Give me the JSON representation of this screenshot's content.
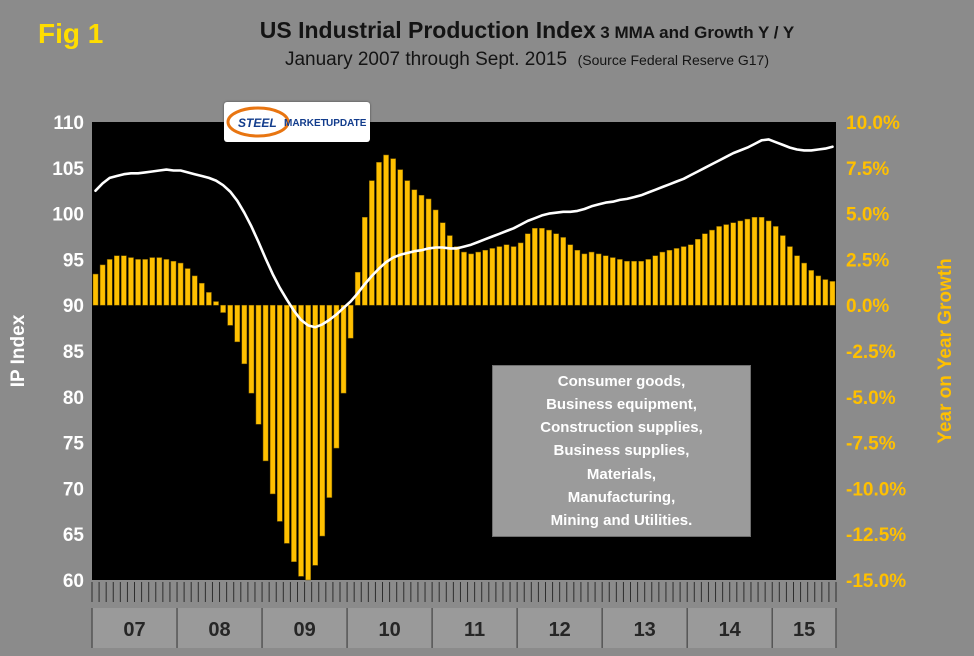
{
  "fig_label": "Fig 1",
  "title": {
    "main": "US Industrial Production Index",
    "suffix": "3 MMA and Growth Y / Y",
    "line2": "January 2007 through Sept.  2015",
    "source": "(Source Federal Reserve G17)"
  },
  "logo": {
    "word1": "STEEL",
    "word2": "MARKET",
    "word3": "UPDATE"
  },
  "annotation": {
    "lines": [
      "Consumer goods,",
      "Business equipment,",
      "Construction supplies,",
      "Business supplies,",
      "Materials,",
      "Manufacturing,",
      "Mining and Utilities."
    ]
  },
  "colors": {
    "background": "#8B8B8B",
    "plot_bg": "#000000",
    "bar": "#FFC000",
    "bar_edge": "#7A5C00",
    "line": "#FFFFFF",
    "left_axis_text": "#FFFFFF",
    "right_axis_text": "#FFC000",
    "fig_label": "#FFDD00",
    "year_text": "#262626",
    "year_band": "#9A9A9A",
    "month_tick": "#2E2E2E"
  },
  "chart_data": {
    "type": "bar",
    "combo": [
      "bar",
      "line"
    ],
    "title": "US Industrial Production Index 3 MMA and Growth Y / Y",
    "subtitle": "January 2007 through Sept. 2015 (Source Federal Reserve G17)",
    "grid": false,
    "legend": "none",
    "plot_background": "black",
    "x": {
      "start": "2007-01",
      "end": "2015-09",
      "n_months": 105,
      "year_labels": [
        "07",
        "08",
        "09",
        "10",
        "11",
        "12",
        "13",
        "14",
        "15"
      ],
      "months_per_year": [
        12,
        12,
        12,
        12,
        12,
        12,
        12,
        12,
        9
      ]
    },
    "axes": {
      "left": {
        "label": "IP Index",
        "min": 60,
        "max": 110,
        "tick_step": 5,
        "ticks": [
          110,
          105,
          100,
          95,
          90,
          85,
          80,
          75,
          70,
          65,
          60
        ]
      },
      "right": {
        "label": "Year on Year Growth",
        "min": -15,
        "max": 10,
        "tick_step": 2.5,
        "tick_labels": [
          "10.0%",
          "7.5%",
          "5.0%",
          "2.5%",
          "0.0%",
          "-2.5%",
          "-5.0%",
          "-7.5%",
          "-10.0%",
          "-12.5%",
          "-15.0%"
        ]
      }
    },
    "series": [
      {
        "name": "Growth Year on Year (3 MMA)",
        "mark": "bar",
        "axis": "right",
        "color": "#FFC000",
        "values": [
          1.7,
          2.2,
          2.5,
          2.7,
          2.7,
          2.6,
          2.5,
          2.5,
          2.6,
          2.6,
          2.5,
          2.4,
          2.3,
          2.0,
          1.6,
          1.2,
          0.7,
          0.2,
          -0.4,
          -1.1,
          -2.0,
          -3.2,
          -4.8,
          -6.5,
          -8.5,
          -10.3,
          -11.8,
          -13.0,
          -14.0,
          -14.8,
          -15.0,
          -14.2,
          -12.6,
          -10.5,
          -7.8,
          -4.8,
          -1.8,
          1.8,
          4.8,
          6.8,
          7.8,
          8.2,
          8.0,
          7.4,
          6.8,
          6.3,
          6.0,
          5.8,
          5.2,
          4.5,
          3.8,
          3.2,
          2.9,
          2.8,
          2.9,
          3.0,
          3.1,
          3.2,
          3.3,
          3.2,
          3.4,
          3.9,
          4.2,
          4.2,
          4.1,
          3.9,
          3.7,
          3.3,
          3.0,
          2.8,
          2.9,
          2.8,
          2.7,
          2.6,
          2.5,
          2.4,
          2.4,
          2.4,
          2.5,
          2.7,
          2.9,
          3.0,
          3.1,
          3.2,
          3.3,
          3.6,
          3.9,
          4.1,
          4.3,
          4.4,
          4.5,
          4.6,
          4.7,
          4.8,
          4.8,
          4.6,
          4.3,
          3.8,
          3.2,
          2.7,
          2.3,
          1.9,
          1.6,
          1.4,
          1.3
        ]
      },
      {
        "name": "IP Index 3 MMA",
        "mark": "line",
        "axis": "left",
        "color": "#FFFFFF",
        "values": [
          102.5,
          103.3,
          103.9,
          104.1,
          104.3,
          104.4,
          104.4,
          104.5,
          104.6,
          104.7,
          104.8,
          104.7,
          104.7,
          104.5,
          104.3,
          104.1,
          103.9,
          103.6,
          103.1,
          102.4,
          101.4,
          100.1,
          98.6,
          96.9,
          95.1,
          93.4,
          91.9,
          90.6,
          89.4,
          88.4,
          87.8,
          87.6,
          87.9,
          88.4,
          89.0,
          89.7,
          90.4,
          91.3,
          92.3,
          93.2,
          94.0,
          94.7,
          95.2,
          95.5,
          95.7,
          95.9,
          96.0,
          96.2,
          96.3,
          96.3,
          96.2,
          96.2,
          96.4,
          96.6,
          96.9,
          97.2,
          97.5,
          97.8,
          98.1,
          98.4,
          98.8,
          99.2,
          99.5,
          99.8,
          100.0,
          100.1,
          100.2,
          100.2,
          100.3,
          100.5,
          100.8,
          101.0,
          101.2,
          101.3,
          101.5,
          101.6,
          101.8,
          102.0,
          102.3,
          102.6,
          102.9,
          103.2,
          103.5,
          103.8,
          104.2,
          104.6,
          105.0,
          105.4,
          105.8,
          106.2,
          106.6,
          106.9,
          107.2,
          107.6,
          108.0,
          108.1,
          107.8,
          107.5,
          107.2,
          107.0,
          106.9,
          106.9,
          107.0,
          107.1,
          107.3
        ]
      }
    ]
  }
}
